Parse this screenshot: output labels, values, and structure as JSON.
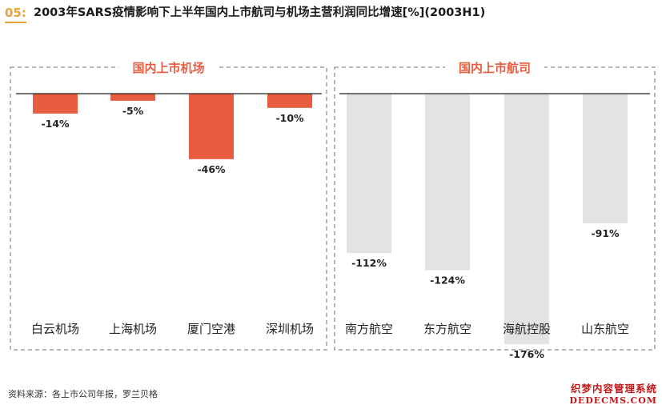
{
  "figure": {
    "number": "05:",
    "title": "2003年SARS疫情影响下上半年国内上市航司与机场主营利润同比增速[%](2003H1)"
  },
  "chart_data": {
    "type": "bar",
    "ylim": [
      -190,
      0
    ],
    "grid": false,
    "value_suffix": "%",
    "groups": [
      {
        "name": "国内上市机场",
        "color": "#e85c3f",
        "categories": [
          "白云机场",
          "上海机场",
          "厦门空港",
          "深圳机场"
        ],
        "values": [
          -14,
          -5,
          -46,
          -10
        ]
      },
      {
        "name": "国内上市航司",
        "color": "#e3e3e3",
        "categories": [
          "南方航空",
          "东方航空",
          "海航控股",
          "山东航空"
        ],
        "values": [
          -112,
          -124,
          -176,
          -91
        ]
      }
    ]
  },
  "source_text": "资料来源：各上市公司年报，罗兰贝格",
  "watermark": {
    "cn": "织梦内容管理系统",
    "en": "DEDECMS.COM"
  }
}
